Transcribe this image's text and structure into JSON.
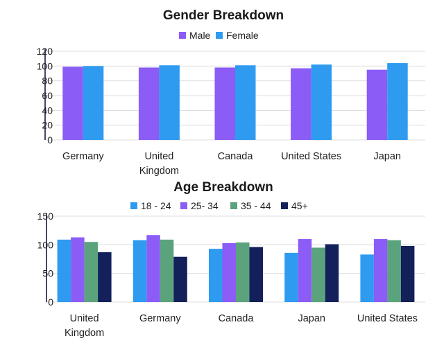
{
  "chart_data": [
    {
      "type": "bar",
      "title": "Gender Breakdown",
      "categories": [
        [
          "Germany"
        ],
        [
          "United",
          "Kingdom"
        ],
        [
          "Canada"
        ],
        [
          "United States"
        ],
        [
          "Japan"
        ]
      ],
      "series": [
        {
          "name": "Male",
          "values": [
            99,
            98,
            98,
            97,
            95
          ],
          "color": "#8B5CF6"
        },
        {
          "name": "Female",
          "values": [
            100,
            101,
            101,
            102,
            104
          ],
          "color": "#2E9BF0"
        }
      ],
      "ylim": [
        0,
        120
      ],
      "yticks": [
        0,
        20,
        40,
        60,
        80,
        100,
        120
      ],
      "grid": true,
      "legend": "top-center"
    },
    {
      "type": "bar",
      "title": "Age Breakdown",
      "categories": [
        [
          "United",
          "Kingdom"
        ],
        [
          "Germany"
        ],
        [
          "Canada"
        ],
        [
          "Japan"
        ],
        [
          "United States"
        ]
      ],
      "series": [
        {
          "name": "18 - 24",
          "values": [
            109,
            108,
            93,
            86,
            83
          ],
          "color": "#2E9BF0"
        },
        {
          "name": "25- 34",
          "values": [
            113,
            117,
            103,
            110,
            110
          ],
          "color": "#8B5CF6"
        },
        {
          "name": "35 - 44",
          "values": [
            105,
            109,
            104,
            95,
            108
          ],
          "color": "#5BA37D"
        },
        {
          "name": "45+",
          "values": [
            87,
            79,
            96,
            101,
            98
          ],
          "color": "#13205A"
        }
      ],
      "ylim": [
        0,
        150
      ],
      "yticks": [
        0,
        50,
        100,
        150
      ],
      "grid": true,
      "legend": "top-center"
    }
  ]
}
